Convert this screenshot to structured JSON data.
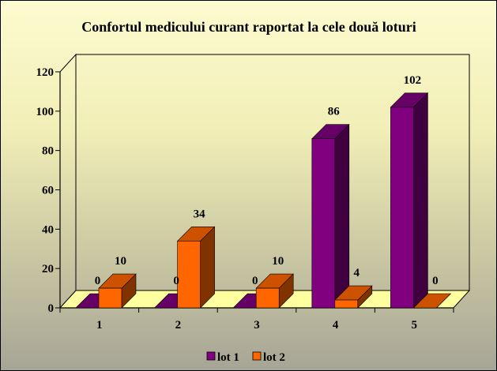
{
  "chart_data": {
    "type": "bar",
    "title": "Confortul medicului curant raportat la cele două loturi",
    "categories": [
      "1",
      "2",
      "3",
      "4",
      "5"
    ],
    "series": [
      {
        "name": "lot 1",
        "values": [
          0,
          0,
          0,
          86,
          102
        ],
        "color": "#800080"
      },
      {
        "name": "lot 2",
        "values": [
          10,
          34,
          10,
          4,
          0
        ],
        "color": "#ff6600"
      }
    ],
    "ylim": [
      0,
      120
    ],
    "yticks": [
      0,
      20,
      40,
      60,
      80,
      100,
      120
    ],
    "grid": false,
    "legend": "bottom",
    "style": "3d-clustered-column",
    "floor_color": "#ffffa0"
  }
}
